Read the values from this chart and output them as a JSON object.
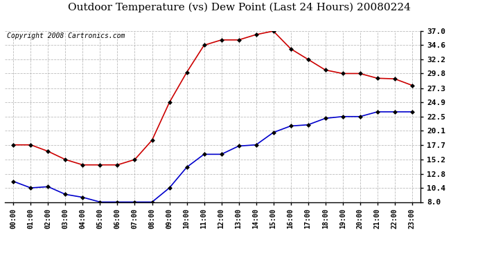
{
  "title": "Outdoor Temperature (vs) Dew Point (Last 24 Hours) 20080224",
  "copyright": "Copyright 2008 Cartronics.com",
  "hours": [
    "00:00",
    "01:00",
    "02:00",
    "03:00",
    "04:00",
    "05:00",
    "06:00",
    "07:00",
    "08:00",
    "09:00",
    "10:00",
    "11:00",
    "12:00",
    "13:00",
    "14:00",
    "15:00",
    "16:00",
    "17:00",
    "18:00",
    "19:00",
    "20:00",
    "21:00",
    "22:00",
    "23:00"
  ],
  "temp_red": [
    17.7,
    17.7,
    16.6,
    15.2,
    14.3,
    14.3,
    14.3,
    15.2,
    18.5,
    24.9,
    30.0,
    34.6,
    35.5,
    35.5,
    36.4,
    37.0,
    34.0,
    32.2,
    30.4,
    29.8,
    29.8,
    29.0,
    28.9,
    27.8
  ],
  "dew_blue": [
    11.5,
    10.4,
    10.6,
    9.3,
    8.8,
    8.0,
    8.0,
    8.0,
    8.0,
    10.4,
    13.9,
    16.1,
    16.1,
    17.5,
    17.7,
    19.8,
    20.9,
    21.1,
    22.2,
    22.5,
    22.5,
    23.3,
    23.3,
    23.3
  ],
  "yticks": [
    8.0,
    10.4,
    12.8,
    15.2,
    17.7,
    20.1,
    22.5,
    24.9,
    27.3,
    29.8,
    32.2,
    34.6,
    37.0
  ],
  "ymin": 8.0,
  "ymax": 37.0,
  "red_color": "#cc0000",
  "blue_color": "#0000cc",
  "bg_color": "#ffffff",
  "grid_color": "#bbbbbb",
  "title_fontsize": 11,
  "copyright_fontsize": 7,
  "figwidth": 6.9,
  "figheight": 3.75,
  "dpi": 100
}
